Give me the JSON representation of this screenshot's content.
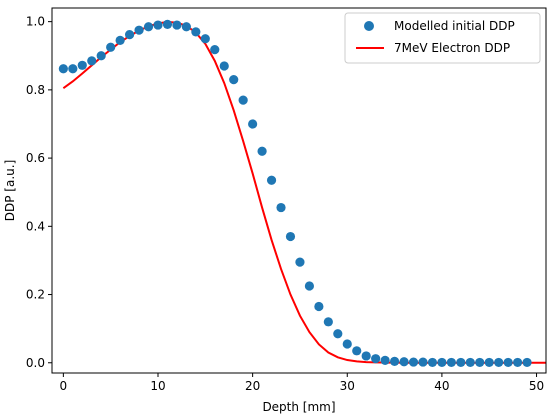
{
  "chart_data": {
    "type": "line",
    "title": "",
    "xlabel": "Depth [mm]",
    "ylabel": "DDP [a.u.]",
    "xlim": [
      -1.2,
      51
    ],
    "ylim": [
      -0.03,
      1.04
    ],
    "xticks": [
      0,
      10,
      20,
      30,
      40,
      50
    ],
    "yticks": [
      0.0,
      0.2,
      0.4,
      0.6,
      0.8,
      1.0
    ],
    "xtick_labels": [
      "0",
      "10",
      "20",
      "30",
      "40",
      "50"
    ],
    "ytick_labels": [
      "0.0",
      "0.2",
      "0.4",
      "0.6",
      "0.8",
      "1.0"
    ],
    "grid": false,
    "legend_position": "top-right",
    "series": [
      {
        "name": "Modelled initial DDP",
        "kind": "scatter",
        "color": "#1f77b4",
        "x": [
          0,
          1,
          2,
          3,
          4,
          5,
          6,
          7,
          8,
          9,
          10,
          11,
          12,
          13,
          14,
          15,
          16,
          17,
          18,
          19,
          20,
          21,
          22,
          23,
          24,
          25,
          26,
          27,
          28,
          29,
          30,
          31,
          32,
          33,
          34,
          35,
          36,
          37,
          38,
          39,
          40,
          41,
          42,
          43,
          44,
          45,
          46,
          47,
          48,
          49
        ],
        "y": [
          0.862,
          0.862,
          0.872,
          0.885,
          0.9,
          0.925,
          0.945,
          0.962,
          0.975,
          0.985,
          0.99,
          0.992,
          0.99,
          0.985,
          0.97,
          0.95,
          0.918,
          0.87,
          0.83,
          0.77,
          0.7,
          0.62,
          0.535,
          0.455,
          0.37,
          0.295,
          0.225,
          0.165,
          0.12,
          0.085,
          0.055,
          0.035,
          0.02,
          0.012,
          0.007,
          0.004,
          0.003,
          0.002,
          0.002,
          0.001,
          0.001,
          0.001,
          0.001,
          0.001,
          0.001,
          0.001,
          0.001,
          0.001,
          0.001,
          0.001
        ]
      },
      {
        "name": "7MeV Electron DDP",
        "kind": "line",
        "color": "#ff0000",
        "x": [
          0,
          1,
          2,
          3,
          4,
          5,
          6,
          7,
          8,
          9,
          10,
          11,
          12,
          13,
          14,
          15,
          16,
          17,
          18,
          19,
          20,
          21,
          22,
          23,
          24,
          25,
          26,
          27,
          28,
          29,
          30,
          31,
          32,
          33,
          34,
          35,
          36,
          38,
          40,
          42,
          44,
          46,
          48,
          50,
          51
        ],
        "y": [
          0.805,
          0.825,
          0.848,
          0.872,
          0.896,
          0.918,
          0.94,
          0.958,
          0.974,
          0.986,
          0.995,
          0.999,
          0.997,
          0.988,
          0.968,
          0.935,
          0.885,
          0.82,
          0.74,
          0.65,
          0.555,
          0.455,
          0.36,
          0.275,
          0.2,
          0.138,
          0.09,
          0.054,
          0.03,
          0.016,
          0.008,
          0.004,
          0.002,
          0.001,
          0.0005,
          0.0003,
          0.0002,
          0.0001,
          0,
          0,
          0,
          0,
          0,
          0,
          0
        ]
      }
    ]
  }
}
